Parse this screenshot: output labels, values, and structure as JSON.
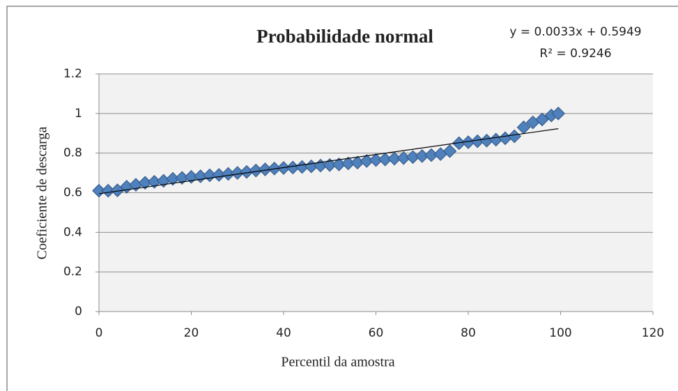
{
  "chart_data": {
    "type": "scatter",
    "title": "Probabilidade normal",
    "x_label": "Percentil da amostra",
    "y_label": "Coeficiente de descarga",
    "x": [
      0,
      2,
      4,
      6,
      8,
      10,
      12,
      14,
      16,
      18,
      20,
      22,
      24,
      26,
      28,
      30,
      32,
      34,
      36,
      38,
      40,
      42,
      44,
      46,
      48,
      50,
      52,
      54,
      56,
      58,
      60,
      62,
      64,
      66,
      68,
      70,
      72,
      74,
      76,
      78,
      80,
      82,
      84,
      86,
      88,
      90,
      92,
      94,
      96,
      98,
      99.5
    ],
    "values": [
      0.61,
      0.61,
      0.612,
      0.63,
      0.64,
      0.65,
      0.655,
      0.66,
      0.67,
      0.675,
      0.68,
      0.683,
      0.688,
      0.69,
      0.695,
      0.7,
      0.705,
      0.712,
      0.718,
      0.722,
      0.725,
      0.727,
      0.73,
      0.733,
      0.737,
      0.74,
      0.743,
      0.748,
      0.752,
      0.76,
      0.765,
      0.768,
      0.772,
      0.775,
      0.78,
      0.785,
      0.79,
      0.795,
      0.81,
      0.85,
      0.855,
      0.86,
      0.863,
      0.868,
      0.875,
      0.885,
      0.93,
      0.955,
      0.97,
      0.99,
      1.0
    ],
    "color": "#4f81bd",
    "trendline": {
      "slope": 0.0033,
      "intercept": 0.5949,
      "equation": "y = 0.0033x + 0.5949",
      "r2": "R² = 0.9246",
      "color": "#000000"
    },
    "xlim": [
      0,
      120
    ],
    "xticks": [
      0,
      20,
      40,
      60,
      80,
      100,
      120
    ],
    "ylim": [
      0,
      1.2
    ],
    "yticks": [
      0,
      0.2,
      0.4,
      0.6,
      0.8,
      1,
      1.2
    ],
    "grid": true
  }
}
